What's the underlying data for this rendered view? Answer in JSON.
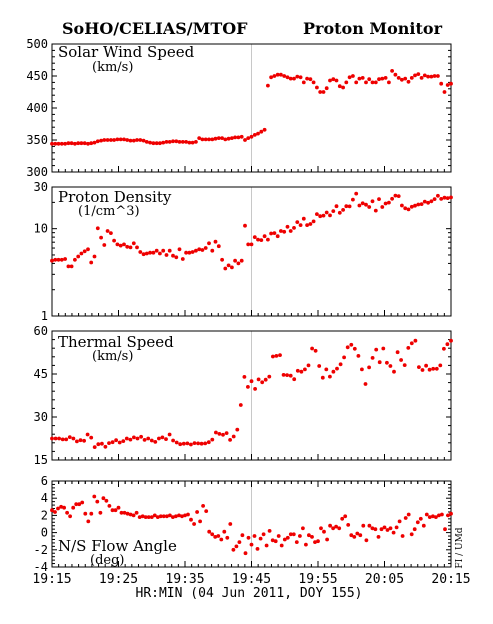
{
  "header": {
    "left_title": "SoHO/CELIAS/MTOF",
    "right_title": "Proton Monitor"
  },
  "x_axis_label": "HR:MIN (04 Jun 2011, DOY 155)",
  "side_label": "FI / UMd",
  "x_ticks": [
    "19:15",
    "19:25",
    "19:35",
    "19:45",
    "19:55",
    "20:05",
    "20:15"
  ],
  "colors": {
    "points": "#ee0000",
    "marker_line": "#c8c8c8",
    "axes": "#000000"
  },
  "chart_data": [
    {
      "type": "scatter",
      "title": "Solar Wind Speed",
      "subtitle": "(km/s)",
      "scale": "linear",
      "ylim": [
        300,
        500
      ],
      "y_ticks": [
        "300",
        "350",
        "400",
        "450",
        "500"
      ],
      "x_range": [
        "19:15",
        "20:15"
      ],
      "values": [
        344,
        344,
        344,
        344,
        344,
        345,
        345,
        344,
        345,
        345,
        345,
        344,
        345,
        346,
        348,
        349,
        350,
        350,
        350,
        350,
        351,
        351,
        351,
        350,
        349,
        349,
        350,
        350,
        349,
        347,
        346,
        345,
        345,
        345,
        346,
        347,
        347,
        348,
        348,
        347,
        347,
        347,
        346,
        346,
        347,
        353,
        351,
        351,
        351,
        351,
        352,
        353,
        353,
        351,
        352,
        353,
        354,
        354,
        355,
        350,
        353,
        355,
        358,
        360,
        363,
        366,
        435,
        448,
        450,
        452,
        452,
        450,
        448,
        446,
        446,
        449,
        448,
        440,
        446,
        445,
        440,
        432,
        425,
        425,
        431,
        443,
        445,
        443,
        434,
        432,
        440,
        448,
        450,
        440,
        446,
        447,
        440,
        445,
        440,
        440,
        445,
        446,
        447,
        440,
        458,
        452,
        447,
        444,
        446,
        441,
        447,
        451,
        453,
        447,
        451,
        449,
        449,
        450,
        450,
        438,
        425,
        436,
        438
      ],
      "has_marker_line": true
    },
    {
      "type": "scatter",
      "title": "Proton Density",
      "subtitle": "(1/cm^3)",
      "scale": "log",
      "ylim": [
        1,
        30
      ],
      "y_ticks": [
        "1",
        "10",
        "30"
      ],
      "x_range": [
        "19:15",
        "20:15"
      ],
      "values": [
        4.3,
        4.4,
        4.4,
        4.4,
        4.5,
        3.7,
        3.7,
        4.4,
        4.8,
        5.2,
        5.5,
        5.8,
        4.1,
        4.8,
        10.1,
        7.9,
        6.5,
        9.4,
        8.9,
        7.3,
        6.6,
        6.4,
        6.6,
        6.2,
        6.1,
        6.8,
        6.1,
        5.4,
        5.1,
        5.2,
        5.3,
        5.3,
        5.6,
        5.2,
        5.6,
        5.0,
        5.6,
        4.9,
        4.7,
        5.8,
        4.5,
        5.3,
        5.3,
        5.4,
        5.6,
        5.8,
        5.7,
        6.0,
        6.8,
        5.6,
        7.1,
        6.3,
        4.4,
        3.5,
        3.8,
        3.6,
        4.3,
        4.0,
        4.3,
        10.8,
        6.6,
        6.6,
        8.0,
        7.5,
        7.4,
        8.2,
        7.5,
        8.8,
        8.9,
        8.2,
        9.4,
        9.2,
        10.5,
        9.4,
        10.2,
        11.9,
        11.0,
        13.0,
        11.0,
        11.3,
        12.1,
        14.7,
        13.9,
        14.1,
        15.3,
        14.2,
        15.9,
        18.1,
        15.2,
        16.4,
        18.1,
        18.0,
        21.5,
        25.2,
        18.4,
        19.5,
        18.8,
        17.7,
        20.6,
        16.1,
        21.8,
        17.7,
        19.4,
        19.9,
        22.0,
        23.9,
        23.6,
        18.4,
        17.1,
        16.6,
        17.8,
        18.3,
        18.9,
        19.1,
        20.4,
        19.8,
        20.6,
        21.8,
        23.8,
        21.9,
        22.6,
        22.4,
        22.8
      ],
      "has_marker_line": true
    },
    {
      "type": "scatter",
      "title": "Thermal Speed",
      "subtitle": "(km/s)",
      "scale": "linear",
      "ylim": [
        15,
        60
      ],
      "y_ticks": [
        "15",
        "30",
        "45",
        "60"
      ],
      "x_range": [
        "19:15",
        "20:15"
      ],
      "values": [
        22.5,
        22.5,
        22.5,
        22.2,
        22.2,
        23.0,
        22.5,
        21.5,
        21.9,
        21.7,
        23.9,
        22.8,
        19.5,
        20.5,
        20.7,
        19.6,
        20.9,
        21.2,
        21.9,
        21.1,
        21.6,
        22.5,
        22.1,
        22.9,
        22.5,
        23.1,
        22.0,
        22.5,
        21.8,
        21.3,
        22.5,
        22.9,
        22.3,
        23.9,
        21.8,
        21.1,
        20.5,
        20.7,
        20.8,
        20.4,
        20.9,
        20.8,
        20.7,
        20.8,
        21.2,
        22.1,
        24.6,
        24.1,
        23.8,
        24.4,
        22.0,
        23.2,
        25.6,
        34.2,
        44.0,
        40.5,
        42.5,
        39.8,
        43.1,
        42.1,
        43.0,
        44.1,
        51.1,
        51.3,
        51.6,
        44.7,
        44.6,
        44.4,
        43.2,
        46.1,
        45.8,
        46.6,
        48.0,
        53.9,
        53.1,
        47.8,
        43.7,
        46.6,
        44.1,
        45.8,
        46.9,
        48.4,
        50.8,
        54.3,
        55.2,
        53.8,
        51.3,
        46.6,
        41.5,
        47.3,
        50.6,
        53.5,
        49.1,
        53.9,
        48.9,
        47.8,
        45.8,
        52.6,
        49.9,
        48.1,
        54.1,
        55.7,
        56.6,
        47.4,
        46.4,
        47.9,
        46.5,
        46.8,
        46.8,
        48.0,
        53.8,
        55.4,
        56.6
      ],
      "has_marker_line": true
    },
    {
      "type": "scatter",
      "title": "N/S Flow Angle",
      "subtitle": "(deg)",
      "scale": "linear",
      "ylim": [
        -4,
        6
      ],
      "y_ticks": [
        "-4",
        "-2",
        "0",
        "2",
        "4",
        "6"
      ],
      "x_range": [
        "19:15",
        "20:15"
      ],
      "values": [
        2.6,
        2.4,
        2.8,
        3.0,
        2.9,
        2.3,
        1.9,
        2.9,
        3.3,
        3.3,
        3.5,
        2.2,
        1.3,
        2.2,
        4.2,
        3.6,
        2.3,
        4.0,
        3.7,
        3.1,
        2.6,
        2.6,
        2.9,
        2.3,
        2.3,
        2.2,
        2.1,
        2.0,
        2.3,
        1.8,
        1.9,
        1.8,
        1.8,
        1.8,
        2.0,
        1.8,
        1.9,
        1.9,
        1.9,
        2.0,
        1.8,
        1.9,
        2.0,
        1.9,
        2.0,
        2.1,
        1.5,
        1.0,
        2.4,
        1.3,
        3.1,
        2.5,
        0.1,
        -0.2,
        -0.5,
        -0.4,
        -0.8,
        0.1,
        -0.6,
        1.0,
        -2.0,
        -1.6,
        -1.1,
        -0.3,
        -2.4,
        -0.6,
        -1.4,
        -0.4,
        -1.9,
        -0.7,
        -0.2,
        -1.5,
        0.2,
        -0.9,
        -1.0,
        -0.4,
        -1.5,
        -0.8,
        -0.6,
        -0.2,
        -0.2,
        -1.1,
        -0.4,
        0.5,
        -1.4,
        -0.3,
        -0.5,
        -1.1,
        -1.0,
        0.5,
        0.1,
        -0.8,
        0.8,
        0.5,
        0.7,
        0.5,
        1.6,
        1.9,
        0.9,
        -0.3,
        -0.5,
        -0.1,
        -0.3,
        0.8,
        -0.9,
        0.8,
        0.5,
        0.4,
        -0.5,
        0.4,
        0.6,
        0.3,
        0.5,
        0.0,
        0.6,
        1.3,
        -0.4,
        1.7,
        2.1,
        -0.2,
        0.4,
        1.2,
        1.6,
        0.8,
        2.1,
        1.8,
        1.9,
        1.8,
        2.0,
        2.1,
        0.4,
        2.0,
        2.2
      ],
      "has_marker_line": true
    }
  ]
}
